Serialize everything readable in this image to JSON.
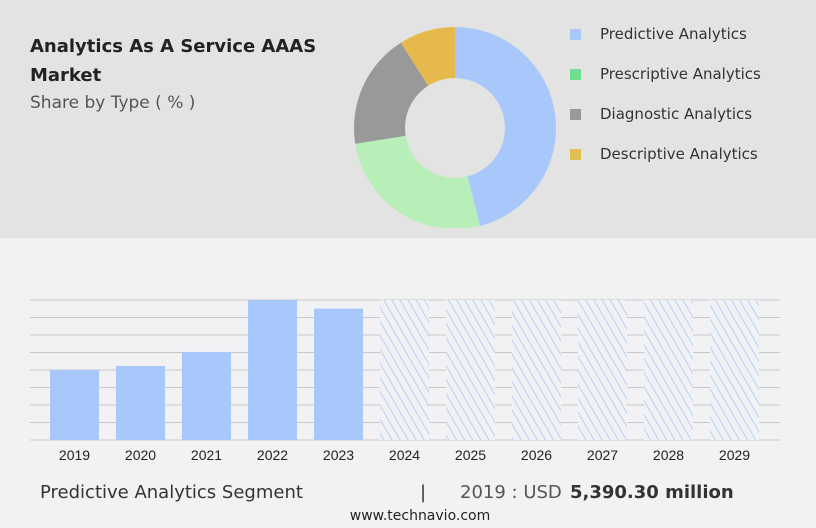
{
  "title": "Analytics As A Service AAAS Market",
  "subtitle": "Share by Type ( % )",
  "footer": {
    "segment": "Predictive Analytics Segment",
    "sep": "|",
    "prefix": "2019 : USD",
    "value": "5,390.30 million",
    "url": "www.technavio.com"
  },
  "chart_data": [
    {
      "type": "pie",
      "donut": true,
      "labels": [
        "Predictive Analytics",
        "Prescriptive Analytics",
        "Diagnostic Analytics",
        "Descriptive Analytics"
      ],
      "values": [
        46,
        26.5,
        18.5,
        9
      ],
      "colors": [
        "#a8c8fc",
        "#b8eeb8",
        "#999999",
        "#e6b94c"
      ],
      "legend_colors": [
        "#a8c8fc",
        "#6fe08f",
        "#999999",
        "#e0c050"
      ],
      "legend": "right"
    },
    {
      "type": "bar",
      "categories": [
        "2019",
        "2020",
        "2021",
        "2022",
        "2023",
        "2024",
        "2025",
        "2026",
        "2027",
        "2028",
        "2029"
      ],
      "values": [
        5390.3,
        5700,
        6780,
        10780,
        10120,
        null,
        null,
        null,
        null,
        null,
        null
      ],
      "forecast": [
        "2024",
        "2025",
        "2026",
        "2027",
        "2028",
        "2029"
      ],
      "ylim": [
        0,
        10780
      ],
      "color": "#a8c8fc",
      "grid": true,
      "unit": "USD million"
    }
  ]
}
